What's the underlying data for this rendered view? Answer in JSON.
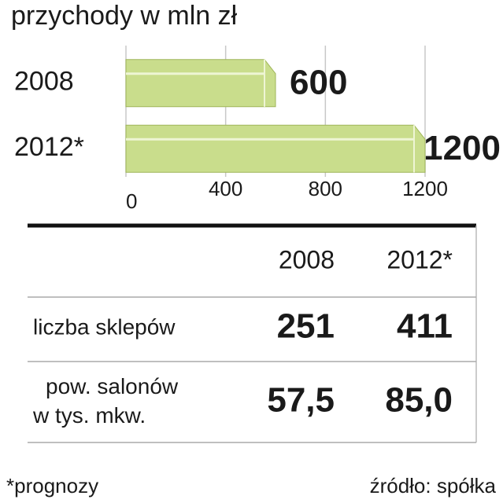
{
  "chart_data": {
    "type": "bar",
    "orientation": "horizontal",
    "title": "przychody w mln zł",
    "categories": [
      "2008",
      "2012*"
    ],
    "values": [
      600,
      1200
    ],
    "color": "#c9dd8c",
    "xlim": [
      0,
      1200
    ],
    "xticks": [
      0,
      400,
      800,
      1200
    ],
    "grid": true
  },
  "table": {
    "header": [
      "2008",
      "2012*"
    ],
    "rows": [
      {
        "label": [
          "liczba sklepów"
        ],
        "values": [
          "251",
          "411"
        ]
      },
      {
        "label": [
          "pow. salonów",
          "w tys. mkw."
        ],
        "values": [
          "57,5",
          "85,0"
        ]
      }
    ]
  },
  "footnote": "*prognozy",
  "source": "źródło: spółka"
}
